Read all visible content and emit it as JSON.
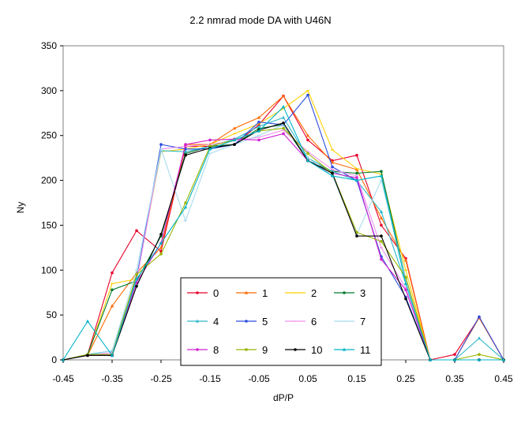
{
  "chart_data": {
    "type": "line",
    "title": "2.2 nmrad mode DA with U46N",
    "xlabel": "dP/P",
    "ylabel": "Ny",
    "xlim": [
      -0.45,
      0.45
    ],
    "ylim": [
      0,
      350
    ],
    "x_ticks": [
      "-0.45",
      "-0.35",
      "-0.25",
      "-0.15",
      "-0.05",
      "0.05",
      "0.15",
      "0.25",
      "0.35",
      "0.45"
    ],
    "y_ticks": [
      "0",
      "50",
      "100",
      "150",
      "200",
      "250",
      "300",
      "350"
    ],
    "grid": false,
    "legend_position": "bottom-center",
    "x": [
      -0.45,
      -0.4,
      -0.35,
      -0.3,
      -0.25,
      -0.2,
      -0.15,
      -0.1,
      -0.05,
      0.0,
      0.05,
      0.1,
      0.15,
      0.2,
      0.25,
      0.3,
      0.35,
      0.4,
      0.45
    ],
    "series": [
      {
        "name": "0",
        "color": "#e8002a",
        "marker": "circle",
        "values": [
          0,
          6,
          97,
          144,
          121,
          238,
          238,
          240,
          262,
          294,
          245,
          222,
          228,
          150,
          113,
          0,
          6,
          47,
          0
        ]
      },
      {
        "name": "1",
        "color": "#ff6a00",
        "marker": "triangle",
        "values": [
          0,
          5,
          60,
          97,
          125,
          240,
          240,
          258,
          270,
          294,
          250,
          220,
          212,
          158,
          111,
          0,
          0,
          47,
          0
        ]
      },
      {
        "name": "2",
        "color": "#ffd000",
        "marker": "line",
        "values": [
          0,
          5,
          85,
          90,
          232,
          235,
          240,
          252,
          263,
          280,
          300,
          234,
          213,
          207,
          100,
          0,
          0,
          0,
          0
        ]
      },
      {
        "name": "3",
        "color": "#007a2e",
        "marker": "circle",
        "values": [
          0,
          6,
          78,
          88,
          138,
          230,
          238,
          240,
          258,
          262,
          222,
          210,
          208,
          210,
          90,
          0,
          0,
          0,
          0
        ]
      },
      {
        "name": "4",
        "color": "#30b8c8",
        "marker": "triangle",
        "values": [
          0,
          6,
          10,
          92,
          233,
          232,
          238,
          246,
          260,
          270,
          225,
          210,
          200,
          165,
          85,
          0,
          0,
          24,
          0
        ]
      },
      {
        "name": "5",
        "color": "#2d4de0",
        "marker": "circle",
        "values": [
          0,
          5,
          5,
          90,
          240,
          235,
          235,
          240,
          265,
          262,
          295,
          215,
          200,
          115,
          70,
          0,
          0,
          48,
          0
        ]
      },
      {
        "name": "6",
        "color": "#f090f0",
        "marker": "line",
        "values": [
          0,
          5,
          8,
          88,
          235,
          238,
          240,
          244,
          248,
          256,
          232,
          212,
          205,
          125,
          80,
          0,
          0,
          0,
          0
        ]
      },
      {
        "name": "7",
        "color": "#a6dcf0",
        "marker": "line",
        "values": [
          0,
          5,
          10,
          100,
          235,
          155,
          230,
          240,
          250,
          262,
          225,
          205,
          140,
          200,
          90,
          0,
          0,
          0,
          0
        ]
      },
      {
        "name": "8",
        "color": "#d020d0",
        "marker": "circle",
        "values": [
          0,
          5,
          5,
          86,
          130,
          240,
          245,
          246,
          245,
          252,
          222,
          208,
          203,
          112,
          78,
          0,
          0,
          0,
          0
        ]
      },
      {
        "name": "9",
        "color": "#9ab400",
        "marker": "circle",
        "values": [
          0,
          6,
          6,
          95,
          118,
          175,
          238,
          245,
          255,
          258,
          230,
          208,
          142,
          132,
          92,
          0,
          0,
          6,
          0
        ]
      },
      {
        "name": "10",
        "color": "#000000",
        "marker": "circle",
        "values": [
          0,
          5,
          5,
          82,
          140,
          228,
          236,
          240,
          256,
          264,
          222,
          208,
          138,
          138,
          68,
          0,
          0,
          0,
          0
        ]
      },
      {
        "name": "11",
        "color": "#00b4c8",
        "marker": "triangle",
        "values": [
          0,
          43,
          5,
          90,
          130,
          170,
          235,
          245,
          255,
          282,
          222,
          205,
          200,
          205,
          85,
          0,
          0,
          0,
          0
        ]
      }
    ]
  }
}
